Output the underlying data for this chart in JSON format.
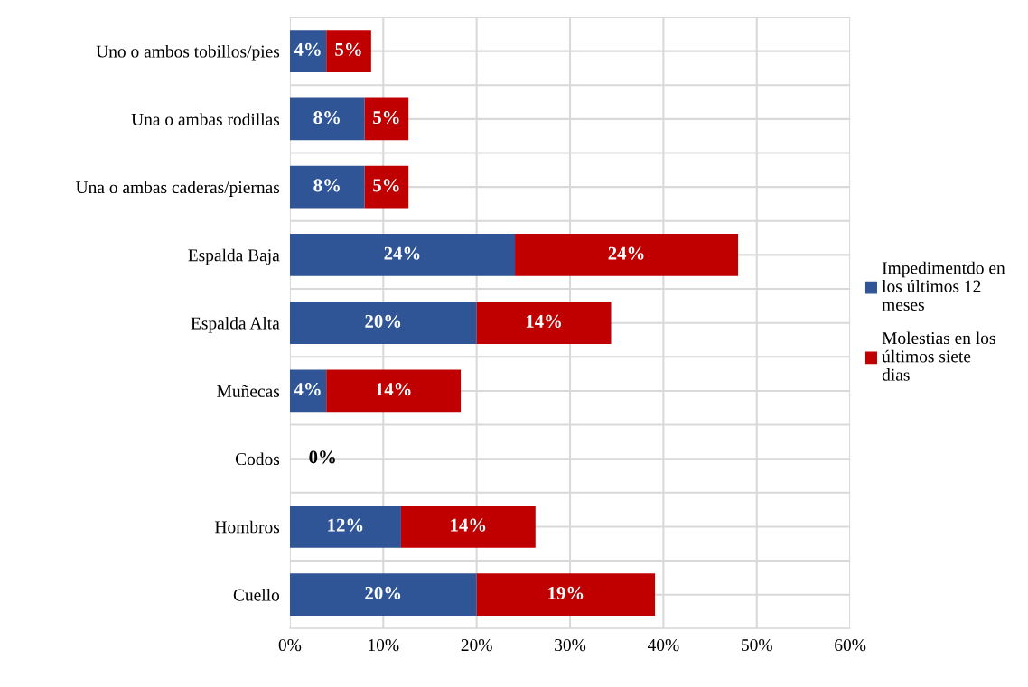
{
  "chart_data": {
    "type": "bar",
    "orientation": "horizontal",
    "stacked": true,
    "categories": [
      "Uno o ambos tobillos/pies",
      "Una o ambas rodillas",
      "Una o ambas caderas/piernas",
      "Espalda Baja",
      "Espalda Alta",
      "Muñecas",
      "Codos",
      "Hombros",
      "Cuello"
    ],
    "series": [
      {
        "name": "Impedimentdo en los últimos 12 meses",
        "color": "#2f5597",
        "values": [
          3.9,
          8.0,
          8.0,
          24.1,
          20.0,
          3.9,
          0,
          11.9,
          20.0
        ],
        "value_labels": [
          "4%",
          "8%",
          "8%",
          "24%",
          "20%",
          "4%",
          "0%",
          "12%",
          "20%"
        ]
      },
      {
        "name": "Molestias en los últimos siete dias",
        "color": "#c00000",
        "values": [
          4.8,
          4.7,
          4.7,
          23.9,
          14.4,
          14.4,
          0,
          14.4,
          19.1
        ],
        "value_labels": [
          "5%",
          "5%",
          "5%",
          "24%",
          "14%",
          "14%",
          null,
          "14%",
          "19%"
        ]
      }
    ],
    "xlim": [
      0,
      60
    ],
    "xticks": [
      {
        "value": 0,
        "label": "0%"
      },
      {
        "value": 10,
        "label": "10%"
      },
      {
        "value": 20,
        "label": "20%"
      },
      {
        "value": 30,
        "label": "30%"
      },
      {
        "value": 40,
        "label": "40%"
      },
      {
        "value": 50,
        "label": "50%"
      },
      {
        "value": 60,
        "label": "60%"
      }
    ],
    "grid": true,
    "legend": "right"
  }
}
